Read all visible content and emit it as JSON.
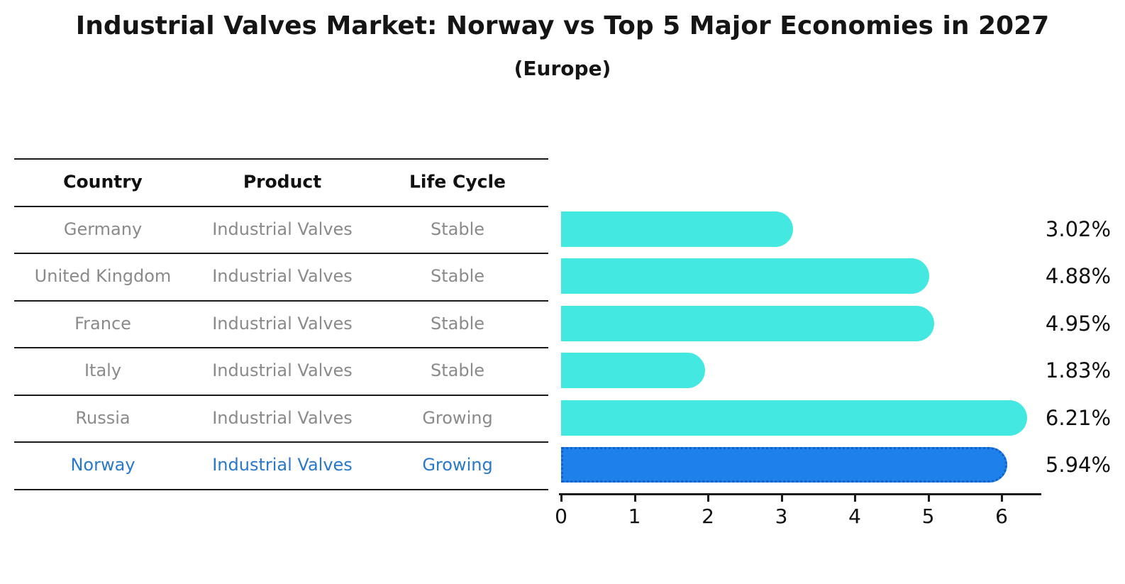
{
  "title": "Industrial Valves Market: Norway vs Top 5 Major Economies in 2027",
  "subtitle": "(Europe)",
  "table": {
    "headers": [
      "Country",
      "Product",
      "Life Cycle"
    ],
    "rows": [
      {
        "country": "Germany",
        "product": "Industrial Valves",
        "life_cycle": "Stable",
        "value": 3.02,
        "value_label": "3.02%",
        "highlighted": false
      },
      {
        "country": "United Kingdom",
        "product": "Industrial Valves",
        "life_cycle": "Stable",
        "value": 4.88,
        "value_label": "4.88%",
        "highlighted": false
      },
      {
        "country": "France",
        "product": "Industrial Valves",
        "life_cycle": "Stable",
        "value": 4.95,
        "value_label": "4.95%",
        "highlighted": false
      },
      {
        "country": "Italy",
        "product": "Industrial Valves",
        "life_cycle": "Stable",
        "value": 1.83,
        "value_label": "1.83%",
        "highlighted": false
      },
      {
        "country": "Russia",
        "product": "Industrial Valves",
        "life_cycle": "Growing",
        "value": 6.21,
        "value_label": "6.21%",
        "highlighted": false
      },
      {
        "country": "Norway",
        "product": "Industrial Valves",
        "life_cycle": "Growing",
        "value": 5.94,
        "value_label": "5.94%",
        "highlighted": true
      }
    ]
  },
  "axis": {
    "ticks": [
      "0",
      "1",
      "2",
      "3",
      "4",
      "5",
      "6"
    ]
  },
  "colors": {
    "bar": "#43e8e1",
    "highlight_bar": "#1e80ea",
    "highlight_bar_border": "#1060c8",
    "highlight_text": "#2979c8",
    "row_text": "#8a8a8a",
    "heading_text": "#111111"
  },
  "chart_data": {
    "type": "bar",
    "orientation": "horizontal",
    "title": "Industrial Valves Market: Norway vs Top 5 Major Economies in 2027",
    "subtitle": "(Europe)",
    "categories": [
      "Germany",
      "United Kingdom",
      "France",
      "Italy",
      "Russia",
      "Norway"
    ],
    "values": [
      3.02,
      4.88,
      4.95,
      1.83,
      6.21,
      5.94
    ],
    "value_labels": [
      "3.02%",
      "4.88%",
      "4.95%",
      "1.83%",
      "6.21%",
      "5.94%"
    ],
    "products": [
      "Industrial Valves",
      "Industrial Valves",
      "Industrial Valves",
      "Industrial Valves",
      "Industrial Valves",
      "Industrial Valves"
    ],
    "life_cycles": [
      "Stable",
      "Stable",
      "Stable",
      "Stable",
      "Growing",
      "Growing"
    ],
    "xlabel": "",
    "ylabel": "",
    "xlim": [
      0,
      6.5
    ],
    "x_ticks": [
      0,
      1,
      2,
      3,
      4,
      5,
      6
    ],
    "grid": false,
    "legend": false,
    "highlight_category": "Norway",
    "bar_color": "#43e8e1",
    "highlight_color": "#1e80ea"
  }
}
